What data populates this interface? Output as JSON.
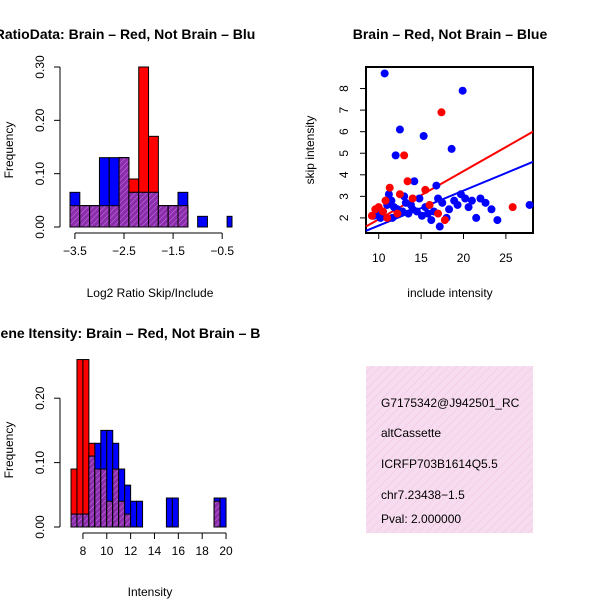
{
  "chart_data": [
    {
      "type": "bar",
      "title": "RatioData: Brain – Red, Not Brain – Blu",
      "xlabel": "Log2 Ratio Skip/Include",
      "ylabel": "Frequency",
      "xlim": [
        -3.6,
        -0.3
      ],
      "ylim": [
        0,
        0.3
      ],
      "xticks": [
        -3.5,
        -2.5,
        -1.5,
        -0.5
      ],
      "xtick_labels": [
        "−3.5",
        "−2.5",
        "−1.5",
        "−0.5"
      ],
      "yticks": [
        0.0,
        0.1,
        0.2,
        0.3
      ],
      "ytick_labels": [
        "0.00",
        "0.10",
        "0.20",
        "0.30"
      ],
      "bin_edges": [
        -3.6,
        -3.4,
        -3.2,
        -3.0,
        -2.8,
        -2.6,
        -2.4,
        -2.2,
        -2.0,
        -1.8,
        -1.6,
        -1.4,
        -1.2,
        -1.0,
        -0.8,
        -0.6,
        -0.4,
        -0.3
      ],
      "series": [
        {
          "name": "Brain",
          "color": "#ff0000",
          "values": [
            0.04,
            0.04,
            0.04,
            0.04,
            0.04,
            0.13,
            0.09,
            0.3,
            0.17,
            0.04,
            0.04,
            0.04,
            0.0,
            0.0,
            0.0,
            0.0,
            0.0
          ]
        },
        {
          "name": "Not Brain",
          "color": "#0000ff",
          "values": [
            0.065,
            0.04,
            0.04,
            0.13,
            0.13,
            0.13,
            0.065,
            0.065,
            0.065,
            0.04,
            0.04,
            0.065,
            0.0,
            0.02,
            0.0,
            0.0,
            0.02
          ]
        }
      ]
    },
    {
      "type": "scatter",
      "title": "Brain – Red, Not Brain – Blue",
      "xlabel": "include intensity",
      "ylabel": "skip intensity",
      "xlim": [
        8.5,
        28.2
      ],
      "ylim": [
        1.3,
        9.0
      ],
      "xticks": [
        10,
        15,
        20,
        25
      ],
      "yticks": [
        2,
        3,
        4,
        5,
        6,
        7,
        8
      ],
      "series": [
        {
          "name": "Brain",
          "color": "#ff0000",
          "points": [
            [
              9.2,
              2.1
            ],
            [
              9.6,
              2.4
            ],
            [
              10.0,
              2.5
            ],
            [
              10.5,
              2.3
            ],
            [
              11.0,
              2.0
            ],
            [
              11.3,
              3.4
            ],
            [
              12.2,
              2.2
            ],
            [
              12.5,
              3.1
            ],
            [
              13.0,
              4.9
            ],
            [
              13.4,
              3.7
            ],
            [
              14.0,
              2.9
            ],
            [
              15.5,
              3.3
            ],
            [
              16.0,
              2.6
            ],
            [
              17.0,
              2.2
            ],
            [
              17.4,
              6.9
            ],
            [
              17.8,
              1.9
            ],
            [
              25.8,
              2.5
            ],
            [
              10.8,
              2.8
            ]
          ],
          "fit": {
            "x1": 8.5,
            "y1": 1.6,
            "x2": 28.2,
            "y2": 6.0
          }
        },
        {
          "name": "Not Brain",
          "color": "#0000ff",
          "points": [
            [
              9.4,
              2.1
            ],
            [
              9.8,
              2.2
            ],
            [
              10.2,
              2.0
            ],
            [
              10.5,
              2.3
            ],
            [
              10.7,
              8.7
            ],
            [
              11.0,
              2.6
            ],
            [
              11.2,
              3.1
            ],
            [
              11.5,
              2.8
            ],
            [
              11.8,
              2.5
            ],
            [
              12.0,
              4.9
            ],
            [
              12.2,
              2.4
            ],
            [
              12.5,
              6.1
            ],
            [
              12.8,
              2.3
            ],
            [
              13.2,
              2.7
            ],
            [
              13.5,
              2.2
            ],
            [
              13.8,
              2.6
            ],
            [
              14.0,
              2.4
            ],
            [
              14.2,
              3.7
            ],
            [
              14.5,
              2.3
            ],
            [
              14.8,
              2.9
            ],
            [
              15.1,
              2.1
            ],
            [
              15.3,
              5.8
            ],
            [
              15.5,
              2.5
            ],
            [
              15.8,
              2.2
            ],
            [
              16.2,
              1.9
            ],
            [
              16.5,
              2.3
            ],
            [
              16.8,
              3.5
            ],
            [
              17.2,
              1.6
            ],
            [
              17.5,
              2.7
            ],
            [
              18.0,
              2.0
            ],
            [
              18.3,
              2.4
            ],
            [
              18.6,
              5.2
            ],
            [
              18.9,
              2.8
            ],
            [
              19.3,
              2.6
            ],
            [
              19.7,
              3.1
            ],
            [
              19.9,
              7.9
            ],
            [
              20.2,
              2.9
            ],
            [
              20.6,
              2.5
            ],
            [
              21.0,
              2.8
            ],
            [
              21.5,
              2.0
            ],
            [
              22.0,
              2.9
            ],
            [
              22.6,
              2.7
            ],
            [
              23.3,
              2.4
            ],
            [
              27.8,
              2.6
            ],
            [
              24.0,
              1.9
            ],
            [
              17.0,
              2.9
            ],
            [
              13.0,
              3.0
            ],
            [
              11.6,
              2.0
            ]
          ],
          "fit": {
            "x1": 8.5,
            "y1": 1.4,
            "x2": 28.2,
            "y2": 4.6
          }
        }
      ]
    },
    {
      "type": "bar",
      "title": "Gene Itensity: Brain – Red, Not Brain – B",
      "xlabel": "Intensity",
      "ylabel": "Frequency",
      "xlim": [
        7.0,
        20.5
      ],
      "ylim": [
        0,
        0.25
      ],
      "xticks": [
        8,
        10,
        12,
        14,
        16,
        18,
        20
      ],
      "xtick_labels": [
        "8",
        "10",
        "12",
        "14",
        "16",
        "18",
        "20"
      ],
      "yticks": [
        0.0,
        0.1,
        0.2
      ],
      "ytick_labels": [
        "0.00",
        "0.10",
        "0.20"
      ],
      "bin_edges": [
        7.0,
        7.5,
        8.0,
        8.5,
        9.0,
        9.5,
        10.0,
        10.5,
        11.0,
        11.5,
        12.0,
        12.5,
        13.0,
        13.5,
        14.0,
        14.5,
        15.0,
        15.5,
        16.0,
        16.5,
        17.0,
        17.5,
        18.0,
        18.5,
        19.0,
        19.5,
        20.0,
        20.5
      ],
      "series": [
        {
          "name": "Brain",
          "color": "#ff0000",
          "values": [
            0.09,
            0.26,
            0.26,
            0.13,
            0.09,
            0.09,
            0.04,
            0.09,
            0.04,
            0.02,
            0.0,
            0.0,
            0.0,
            0.0,
            0.0,
            0.0,
            0.0,
            0.0,
            0.0,
            0.0,
            0.0,
            0.0,
            0.0,
            0.0,
            0.04,
            0.0,
            0.0
          ]
        },
        {
          "name": "Not Brain",
          "color": "#0000ff",
          "values": [
            0.02,
            0.02,
            0.02,
            0.11,
            0.13,
            0.15,
            0.15,
            0.13,
            0.09,
            0.065,
            0.04,
            0.04,
            0.0,
            0.0,
            0.0,
            0.0,
            0.045,
            0.045,
            0.0,
            0.0,
            0.0,
            0.0,
            0.0,
            0.0,
            0.045,
            0.045,
            0.0
          ]
        }
      ]
    }
  ],
  "info_panel": {
    "lines": [
      "G7175342@J942501_RC",
      "altCassette",
      "ICRFP703B1614Q5.5",
      "chr7.23438−1.5"
    ],
    "pval": "Pval: 2.000000",
    "pval_color": "#a01010",
    "background": "#f7dcef"
  }
}
